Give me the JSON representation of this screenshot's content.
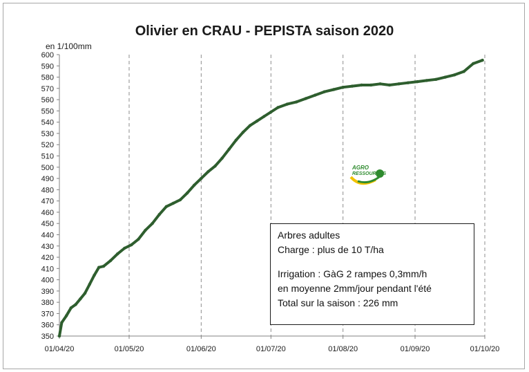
{
  "chart_data": {
    "type": "line",
    "title": "Olivier en CRAU - PEPISTA saison 2020",
    "ylabel": "en 1/100mm",
    "xlabel": "",
    "ylim": [
      350,
      600
    ],
    "y_ticks": [
      "600",
      "590",
      "580",
      "570",
      "560",
      "550",
      "540",
      "530",
      "520",
      "510",
      "500",
      "490",
      "480",
      "470",
      "460",
      "450",
      "440",
      "430",
      "420",
      "410",
      "400",
      "390",
      "380",
      "370",
      "360",
      "350"
    ],
    "x_ticks": [
      "01/04/20",
      "01/05/20",
      "01/06/20",
      "01/07/20",
      "01/08/20",
      "01/09/20",
      "01/10/20"
    ],
    "xlim": [
      "2020-04-01",
      "2020-10-01"
    ],
    "grid": "vertical dashed at month starts",
    "series": [
      {
        "color": "#2e5e2e",
        "points": [
          [
            "2020-04-01",
            350
          ],
          [
            "2020-04-02",
            362
          ],
          [
            "2020-04-04",
            368
          ],
          [
            "2020-04-06",
            375
          ],
          [
            "2020-04-08",
            378
          ],
          [
            "2020-04-10",
            383
          ],
          [
            "2020-04-12",
            388
          ],
          [
            "2020-04-14",
            396
          ],
          [
            "2020-04-16",
            404
          ],
          [
            "2020-04-18",
            411
          ],
          [
            "2020-04-20",
            412
          ],
          [
            "2020-04-23",
            417
          ],
          [
            "2020-04-26",
            423
          ],
          [
            "2020-04-29",
            428
          ],
          [
            "2020-05-02",
            431
          ],
          [
            "2020-05-05",
            436
          ],
          [
            "2020-05-08",
            444
          ],
          [
            "2020-05-11",
            450
          ],
          [
            "2020-05-14",
            458
          ],
          [
            "2020-05-17",
            465
          ],
          [
            "2020-05-20",
            468
          ],
          [
            "2020-05-23",
            471
          ],
          [
            "2020-05-26",
            477
          ],
          [
            "2020-05-29",
            484
          ],
          [
            "2020-06-01",
            490
          ],
          [
            "2020-06-04",
            496
          ],
          [
            "2020-06-07",
            501
          ],
          [
            "2020-06-10",
            508
          ],
          [
            "2020-06-13",
            516
          ],
          [
            "2020-06-16",
            524
          ],
          [
            "2020-06-19",
            531
          ],
          [
            "2020-06-22",
            537
          ],
          [
            "2020-06-25",
            541
          ],
          [
            "2020-06-28",
            545
          ],
          [
            "2020-07-01",
            549
          ],
          [
            "2020-07-04",
            553
          ],
          [
            "2020-07-08",
            556
          ],
          [
            "2020-07-12",
            558
          ],
          [
            "2020-07-16",
            561
          ],
          [
            "2020-07-20",
            564
          ],
          [
            "2020-07-24",
            567
          ],
          [
            "2020-07-28",
            569
          ],
          [
            "2020-08-01",
            571
          ],
          [
            "2020-08-05",
            572
          ],
          [
            "2020-08-09",
            573
          ],
          [
            "2020-08-13",
            573
          ],
          [
            "2020-08-17",
            574
          ],
          [
            "2020-08-21",
            573
          ],
          [
            "2020-08-25",
            574
          ],
          [
            "2020-08-29",
            575
          ],
          [
            "2020-09-02",
            576
          ],
          [
            "2020-09-06",
            577
          ],
          [
            "2020-09-10",
            578
          ],
          [
            "2020-09-14",
            580
          ],
          [
            "2020-09-18",
            582
          ],
          [
            "2020-09-22",
            585
          ],
          [
            "2020-09-26",
            592
          ],
          [
            "2020-09-30",
            595
          ]
        ]
      }
    ]
  },
  "note": {
    "line1": "Arbres adultes",
    "line2": "Charge : plus de 10 T/ha",
    "line3": "Irrigation : GàG 2 rampes 0,3mm/h",
    "line4": "en moyenne 2mm/jour pendant l'été",
    "line5": "Total sur la saison : 226 mm"
  },
  "logo": {
    "text_top": "AGRO",
    "text_bottom": "RESSOURCES",
    "color_green": "#2e8b2e",
    "color_yellow": "#f2c200"
  }
}
